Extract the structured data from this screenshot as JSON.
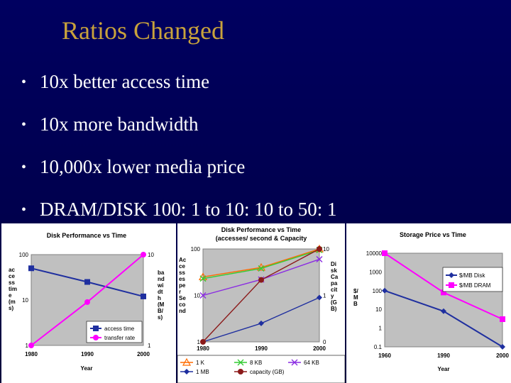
{
  "slide": {
    "title": "Ratios Changed",
    "bullets": [
      "10x better access time",
      "10x more bandwidth",
      "10,000x lower media price",
      "DRAM/DISK 100: 1 to 10: 10 to 50: 1"
    ],
    "bullet_glyph": "•",
    "colors": {
      "background": "#00004f",
      "title": "#c8a23c",
      "text": "#ffffff"
    }
  },
  "chart_data": [
    {
      "type": "line",
      "title": "Disk Performance vs Time",
      "x": [
        1980,
        1990,
        2000
      ],
      "xlabel": "Year",
      "y_left_axis": {
        "ticks": [
          "100",
          "10",
          "1"
        ],
        "label": "ac ce ss tim e (m s)",
        "log": true,
        "range": [
          1,
          100
        ]
      },
      "y_right_axis": {
        "ticks": [
          "10",
          "1"
        ],
        "label": "ba nd wi dt h (M B/ s)",
        "log": true,
        "range": [
          1,
          10
        ]
      },
      "series": [
        {
          "name": "access time",
          "axis": "left",
          "color": "#1f2f9f",
          "marker": "square",
          "values": [
            50,
            25,
            12
          ]
        },
        {
          "name": "transfer rate",
          "axis": "right",
          "color": "#ff00ff",
          "marker": "circle",
          "values": [
            1,
            3,
            10
          ]
        }
      ],
      "legend": "bottom-right",
      "grid": false
    },
    {
      "type": "line",
      "title": "Disk Performance vs Time",
      "subtitle": "(accesses/ second & Capacity",
      "x": [
        1980,
        1990,
        2000
      ],
      "xlabel": "",
      "y_left_axis": {
        "ticks": [
          "100",
          "10",
          "1"
        ],
        "label": "Ac ce ss es pe r Se co nd",
        "log": true,
        "range": [
          1,
          100
        ]
      },
      "y_right_axis": {
        "ticks": [
          "10",
          "1",
          "0"
        ],
        "label": "Di sk Ca pa cit y (G B)",
        "log": true
      },
      "series": [
        {
          "name": "1 K",
          "axis": "left",
          "color": "#ff6a00",
          "marker": "triangle",
          "values": [
            25,
            40,
            100
          ]
        },
        {
          "name": "8 KB",
          "axis": "left",
          "color": "#33cc33",
          "marker": "x",
          "values": [
            23,
            38,
            95
          ]
        },
        {
          "name": "64 KB",
          "axis": "left",
          "color": "#8a2be2",
          "marker": "x",
          "values": [
            10,
            22,
            60
          ]
        },
        {
          "name": "1 MB",
          "axis": "left",
          "color": "#1f2f9f",
          "marker": "diamond",
          "values": [
            1,
            2.5,
            9
          ]
        },
        {
          "name": "capacity (GB)",
          "axis": "right",
          "color": "#8b1a1a",
          "marker": "circle",
          "values": [
            0.01,
            1,
            10
          ]
        }
      ],
      "legend": "bottom",
      "grid": false
    },
    {
      "type": "line",
      "title": "Storage Price vs Time",
      "x": [
        1960,
        1990,
        2000
      ],
      "xlabel": "Year",
      "y_left_axis": {
        "ticks": [
          "10000",
          "1000",
          "100",
          "10",
          "1",
          "0.1"
        ],
        "label": "$/ M B",
        "log": true,
        "range": [
          0.1,
          10000
        ]
      },
      "series": [
        {
          "name": "$/MB Disk",
          "color": "#1f2f9f",
          "marker": "diamond",
          "values": [
            100,
            8,
            0.1
          ]
        },
        {
          "name": "$/MB DRAM",
          "color": "#ff00ff",
          "marker": "square",
          "values": [
            10000,
            80,
            3
          ]
        }
      ],
      "legend": "right",
      "grid": false
    }
  ]
}
